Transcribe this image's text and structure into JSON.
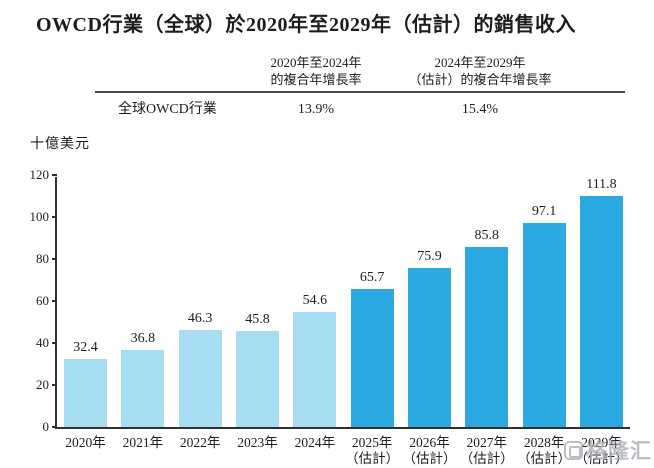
{
  "title": "OWCD行業（全球）於2020年至2029年（估計）的銷售收入",
  "cagr_table": {
    "row_label": "全球OWCD行業",
    "columns": [
      {
        "header_line1": "2020年至2024年",
        "header_line2": "的複合年增長率",
        "value": "13.9%"
      },
      {
        "header_line1": "2024年至2029年",
        "header_line2": "（估計）的複合年增長率",
        "value": "15.4%"
      }
    ]
  },
  "unit_label": "十億美元",
  "watermark": {
    "label": "格隆汇"
  },
  "chart_data": {
    "type": "bar",
    "title": "OWCD行業（全球）於2020年至2029年（估計）的銷售收入",
    "xlabel": "",
    "ylabel": "十億美元",
    "ylim": [
      0,
      120
    ],
    "yticks": [
      0,
      20,
      40,
      60,
      80,
      100,
      120
    ],
    "grid": false,
    "legend": "none",
    "categories": [
      "2020年",
      "2021年",
      "2022年",
      "2023年",
      "2024年",
      "2025年（估計）",
      "2026年（估計）",
      "2027年（估計）",
      "2028年（估計）",
      "2029年（估計）"
    ],
    "values": [
      32.4,
      36.8,
      46.3,
      45.8,
      54.6,
      65.7,
      75.9,
      85.8,
      97.1,
      111.8
    ],
    "colors": {
      "actual": "#a6ddf2",
      "estimated": "#2ba9e0",
      "axis": "#2f2f2f"
    },
    "bars": [
      {
        "label": "2020年",
        "sublabel": "",
        "value": 32.4,
        "estimated": false
      },
      {
        "label": "2021年",
        "sublabel": "",
        "value": 36.8,
        "estimated": false
      },
      {
        "label": "2022年",
        "sublabel": "",
        "value": 46.3,
        "estimated": false
      },
      {
        "label": "2023年",
        "sublabel": "",
        "value": 45.8,
        "estimated": false
      },
      {
        "label": "2024年",
        "sublabel": "",
        "value": 54.6,
        "estimated": false
      },
      {
        "label": "2025年",
        "sublabel": "（估計）",
        "value": 65.7,
        "estimated": true
      },
      {
        "label": "2026年",
        "sublabel": "（估計）",
        "value": 75.9,
        "estimated": true
      },
      {
        "label": "2027年",
        "sublabel": "（估計）",
        "value": 85.8,
        "estimated": true
      },
      {
        "label": "2028年",
        "sublabel": "（估計）",
        "value": 97.1,
        "estimated": true
      },
      {
        "label": "2029年",
        "sublabel": "（估計）",
        "value": 111.8,
        "estimated": true
      }
    ]
  }
}
